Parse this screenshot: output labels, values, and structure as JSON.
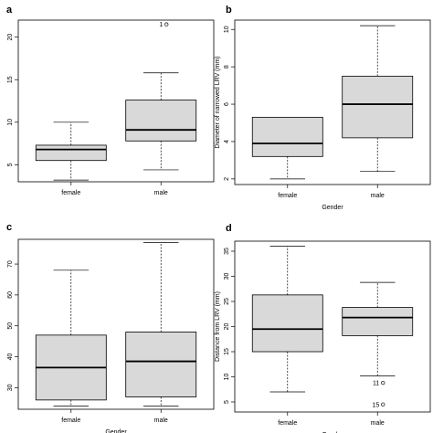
{
  "chart_data": [
    {
      "type": "boxplot",
      "panel_label": "a",
      "xlabel": "",
      "ylabel": "",
      "categories": [
        "female",
        "male"
      ],
      "yticks": [
        5,
        10,
        15,
        20
      ],
      "ylim": [
        3,
        22
      ],
      "boxes": [
        {
          "category": "female",
          "min": 3.2,
          "q1": 5.5,
          "median": 6.8,
          "q3": 7.3,
          "max": 10.0,
          "outliers": []
        },
        {
          "category": "male",
          "min": 4.4,
          "q1": 7.8,
          "median": 9.1,
          "q3": 12.6,
          "max": 15.8,
          "outliers": [
            {
              "value": 21.5,
              "label": "1"
            }
          ]
        }
      ]
    },
    {
      "type": "boxplot",
      "panel_label": "b",
      "xlabel": "Gender",
      "ylabel": "Diameter of narrowed LRV (mm)",
      "categories": [
        "female",
        "male"
      ],
      "yticks": [
        2,
        4,
        6,
        8,
        10
      ],
      "ylim": [
        1.7,
        10.5
      ],
      "boxes": [
        {
          "category": "female",
          "min": 2.0,
          "q1": 3.2,
          "median": 3.9,
          "q3": 5.3,
          "max": 5.3,
          "outliers": []
        },
        {
          "category": "male",
          "min": 2.4,
          "q1": 4.2,
          "median": 6.0,
          "q3": 7.5,
          "max": 10.2,
          "outliers": []
        }
      ]
    },
    {
      "type": "boxplot",
      "panel_label": "c",
      "xlabel": "Gender",
      "ylabel": "",
      "categories": [
        "female",
        "male"
      ],
      "yticks": [
        30,
        40,
        50,
        60,
        70
      ],
      "ylim": [
        23,
        78
      ],
      "boxes": [
        {
          "category": "female",
          "min": 24.0,
          "q1": 26.0,
          "median": 36.5,
          "q3": 47.0,
          "max": 68.0,
          "outliers": []
        },
        {
          "category": "male",
          "min": 24.0,
          "q1": 27.0,
          "median": 38.5,
          "q3": 48.0,
          "max": 77.0,
          "outliers": []
        }
      ]
    },
    {
      "type": "boxplot",
      "panel_label": "d",
      "xlabel": "Gender",
      "ylabel": "Distance from LRV (mm)",
      "categories": [
        "female",
        "male"
      ],
      "yticks": [
        5,
        10,
        15,
        20,
        25,
        30,
        35
      ],
      "ylim": [
        3,
        37
      ],
      "boxes": [
        {
          "category": "female",
          "min": 7.0,
          "q1": 15.0,
          "median": 19.5,
          "q3": 26.3,
          "max": 36.0,
          "outliers": []
        },
        {
          "category": "male",
          "min": 10.2,
          "q1": 18.2,
          "median": 21.8,
          "q3": 23.8,
          "max": 28.8,
          "outliers": [
            {
              "value": 8.8,
              "label": "11"
            },
            {
              "value": 4.5,
              "label": "15"
            }
          ]
        }
      ]
    }
  ]
}
